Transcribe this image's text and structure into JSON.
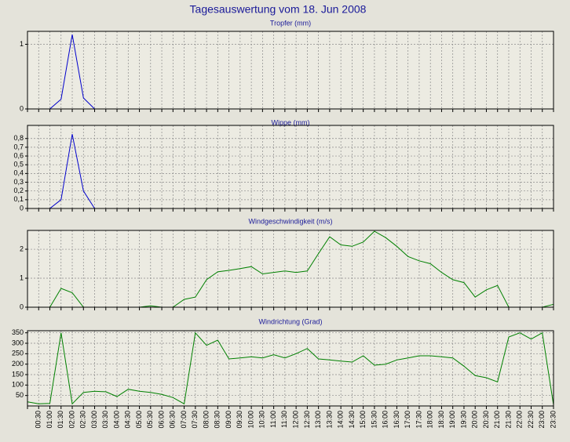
{
  "title": "Tagesauswertung vom 18. Jun 2008",
  "chart_data": [
    {
      "type": "line",
      "title": "Tropfer (mm)",
      "color": "#0000cc",
      "grid": true,
      "ylim": [
        0,
        1.2
      ],
      "yticks": [
        0,
        1
      ],
      "values": [
        null,
        null,
        0,
        0.15,
        1.15,
        0.17,
        0,
        null,
        null,
        null,
        null,
        null,
        null,
        null,
        null,
        null,
        null,
        null,
        null,
        null,
        null,
        null,
        null,
        null,
        null,
        null,
        null,
        null,
        null,
        null,
        null,
        null,
        null,
        null,
        null,
        null,
        null,
        null,
        null,
        null,
        null,
        null,
        null,
        null,
        null,
        null,
        null,
        null
      ]
    },
    {
      "type": "line",
      "title": "Wippe (mm)",
      "color": "#0000cc",
      "grid": true,
      "ylim": [
        0,
        0.95
      ],
      "yticks": [
        0,
        {
          "value": 0.1,
          "label": "0,1"
        },
        {
          "value": 0.2,
          "label": "0,2"
        },
        {
          "value": 0.3,
          "label": "0,3"
        },
        {
          "value": 0.4,
          "label": "0,4"
        },
        {
          "value": 0.5,
          "label": "0,5"
        },
        {
          "value": 0.6,
          "label": "0,6"
        },
        {
          "value": 0.7,
          "label": "0,7"
        },
        {
          "value": 0.8,
          "label": "0,8"
        }
      ],
      "values": [
        null,
        null,
        0,
        0.1,
        0.85,
        0.2,
        0,
        null,
        null,
        null,
        null,
        null,
        null,
        null,
        null,
        null,
        null,
        null,
        null,
        null,
        null,
        null,
        null,
        null,
        null,
        null,
        null,
        null,
        null,
        null,
        null,
        null,
        null,
        null,
        null,
        null,
        null,
        null,
        null,
        null,
        null,
        null,
        null,
        null,
        null,
        null,
        null,
        null
      ]
    },
    {
      "type": "line",
      "title": "Windgeschwindigkeit (m/s)",
      "color": "#008000",
      "grid": true,
      "ylim": [
        0,
        2.65
      ],
      "yticks": [
        0,
        1,
        2
      ],
      "values": [
        null,
        null,
        0,
        0.65,
        0.5,
        0,
        0,
        0,
        0,
        0,
        0,
        0.05,
        0,
        0,
        0.27,
        0.35,
        0.95,
        1.22,
        1.27,
        1.33,
        1.4,
        1.15,
        1.2,
        1.25,
        1.2,
        1.25,
        1.85,
        2.43,
        2.15,
        2.1,
        2.25,
        2.62,
        2.4,
        2.1,
        1.75,
        1.6,
        1.5,
        1.2,
        0.95,
        0.85,
        0.35,
        0.6,
        0.75,
        0,
        0,
        0,
        0,
        0.1
      ]
    },
    {
      "type": "line",
      "title": "Windrichtung (Grad)",
      "color": "#008000",
      "grid": true,
      "ylim": [
        0,
        360
      ],
      "yticks": [
        50,
        100,
        150,
        200,
        250,
        300,
        350
      ],
      "categories": [
        null,
        "00:30",
        "01:00",
        "01:30",
        "02:00",
        "02:30",
        "03:00",
        "03:30",
        "04:00",
        "04:30",
        "05:00",
        "05:30",
        "06:00",
        "06:30",
        "07:00",
        "07:30",
        "08:00",
        "08:30",
        "09:00",
        "09:30",
        "10:00",
        "10:30",
        "11:00",
        "11:30",
        "12:00",
        "12:30",
        "13:00",
        "13:30",
        "14:00",
        "14:30",
        "15:00",
        "15:30",
        "16:00",
        "16:30",
        "17:00",
        "17:30",
        "18:00",
        "18:30",
        "19:00",
        "19:30",
        "20:00",
        "20:30",
        "21:00",
        "21:30",
        "22:00",
        "22:30",
        "23:00",
        "23:30"
      ],
      "values": [
        20,
        10,
        12,
        350,
        10,
        65,
        70,
        68,
        45,
        80,
        70,
        65,
        55,
        40,
        10,
        350,
        290,
        315,
        225,
        230,
        235,
        230,
        245,
        230,
        250,
        275,
        225,
        220,
        215,
        210,
        240,
        195,
        200,
        220,
        230,
        240,
        240,
        235,
        230,
        190,
        145,
        135,
        115,
        330,
        350,
        320,
        350,
        5
      ]
    }
  ]
}
